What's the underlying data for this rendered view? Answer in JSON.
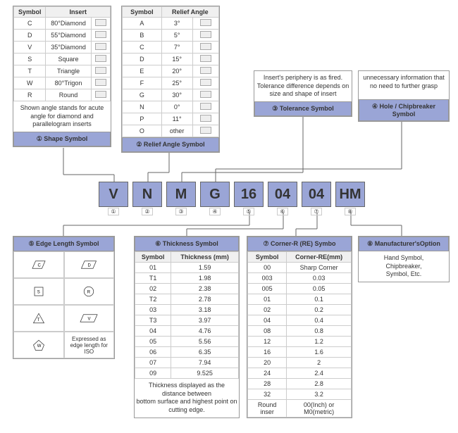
{
  "code": [
    "V",
    "N",
    "M",
    "G",
    "16",
    "04",
    "04",
    "HM"
  ],
  "codeLabels": [
    "①",
    "②",
    "③",
    "④",
    "⑤",
    "⑥",
    "⑦",
    "⑧"
  ],
  "box1": {
    "title": "① Shape Symbol",
    "cols": [
      "Symbol",
      "Insert"
    ],
    "rows": [
      [
        "C",
        "80°Diamond"
      ],
      [
        "D",
        "55°Diamond"
      ],
      [
        "V",
        "35°Diamond"
      ],
      [
        "S",
        "Square"
      ],
      [
        "T",
        "Triangle"
      ],
      [
        "W",
        "80°Trigon"
      ],
      [
        "R",
        "Round"
      ]
    ],
    "note": "Shown angle stands for acute angle for diamond and parallelogram inserts"
  },
  "box2": {
    "title": "② Relief Angle Symbol",
    "cols": [
      "Symbol",
      "Relief Angle"
    ],
    "rows": [
      [
        "A",
        "3°"
      ],
      [
        "B",
        "5°"
      ],
      [
        "C",
        "7°"
      ],
      [
        "D",
        "15°"
      ],
      [
        "E",
        "20°"
      ],
      [
        "F",
        "25°"
      ],
      [
        "G",
        "30°"
      ],
      [
        "N",
        "0°"
      ],
      [
        "P",
        "11°"
      ],
      [
        "O",
        "other"
      ]
    ]
  },
  "box3": {
    "title": "③ Tolerance Symbol",
    "note": "Insert's periphery is as fired.\nTolerance difference depends on size and shape of insert"
  },
  "box4": {
    "title": "④ Hole / Chipbreaker Symbol",
    "note": "unnecessary information that no need to further grasp"
  },
  "box5": {
    "title": "⑤ Edge Length Symbol",
    "shapes": [
      "C",
      "D",
      "S",
      "R",
      "T",
      "V",
      "W"
    ],
    "note": "Expressed as edge length for ISO"
  },
  "box6": {
    "title": "⑥ Thickness Symbol",
    "cols": [
      "Symbol",
      "Thickness (mm)"
    ],
    "rows": [
      [
        "01",
        "1.59"
      ],
      [
        "T1",
        "1.98"
      ],
      [
        "02",
        "2.38"
      ],
      [
        "T2",
        "2.78"
      ],
      [
        "03",
        "3.18"
      ],
      [
        "T3",
        "3.97"
      ],
      [
        "04",
        "4.76"
      ],
      [
        "05",
        "5.56"
      ],
      [
        "06",
        "6.35"
      ],
      [
        "07",
        "7.94"
      ],
      [
        "09",
        "9.525"
      ]
    ],
    "note": "Thickness displayed as the distance between\nbottom surface and highest point on cutting edge."
  },
  "box7": {
    "title": "⑦ Corner-R (RE) Symbo",
    "cols": [
      "Symbol",
      "Corner-RE(mm)"
    ],
    "rows": [
      [
        "00",
        "Sharp Corner"
      ],
      [
        "003",
        "0.03"
      ],
      [
        "005",
        "0.05"
      ],
      [
        "01",
        "0.1"
      ],
      [
        "02",
        "0.2"
      ],
      [
        "04",
        "0.4"
      ],
      [
        "08",
        "0.8"
      ],
      [
        "12",
        "1.2"
      ],
      [
        "16",
        "1.6"
      ],
      [
        "20",
        "2"
      ],
      [
        "24",
        "2.4"
      ],
      [
        "28",
        "2.8"
      ],
      [
        "32",
        "3.2"
      ],
      [
        "Round inser",
        "00(Inch) or M0(metric)"
      ]
    ]
  },
  "box8": {
    "title": "⑧ Manufacturer'sOption",
    "note": "Hand Symbol,\nChipbreaker,\nSymbol, Etc."
  }
}
